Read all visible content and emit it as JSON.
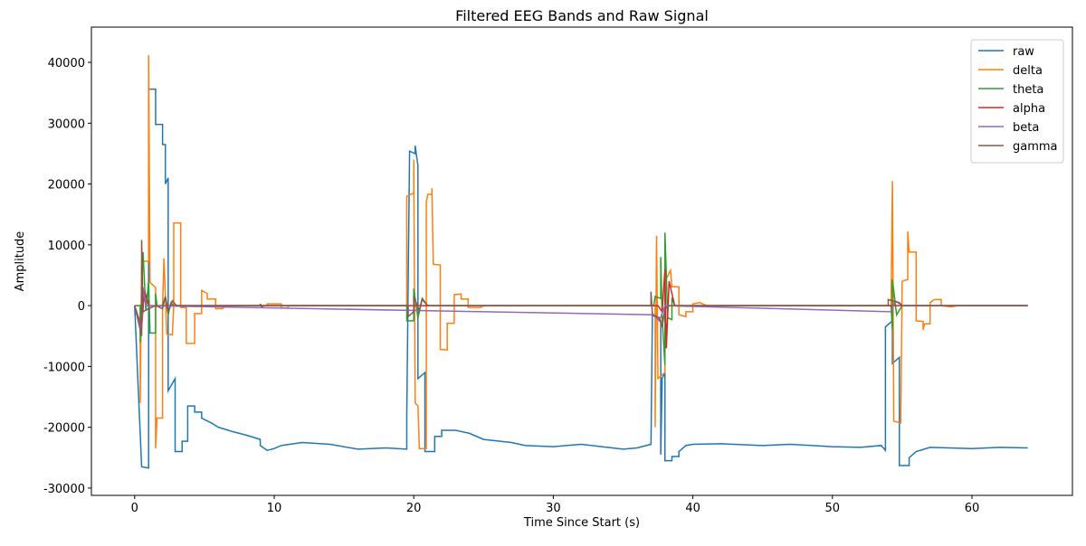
{
  "chart_data": {
    "type": "line",
    "title": "Filtered EEG Bands and Raw Signal",
    "x_label": "Time Since Start (s)",
    "y_label": "Amplitude",
    "xlim": [
      -3.1,
      67.2
    ],
    "ylim": [
      -31200,
      45800
    ],
    "xticks": [
      0,
      10,
      20,
      30,
      40,
      50,
      60
    ],
    "yticks": [
      -30000,
      -20000,
      -10000,
      0,
      10000,
      20000,
      30000,
      40000
    ],
    "legend": "upper right",
    "series": [
      {
        "name": "raw",
        "color": "#1f77b4",
        "x": [
          0,
          0.5,
          1.0,
          1.0,
          1.5,
          1.5,
          2.0,
          2.0,
          2.2,
          2.2,
          2.4,
          2.4,
          2.9,
          2.9,
          3.4,
          3.4,
          3.8,
          3.8,
          4.3,
          4.3,
          4.8,
          4.8,
          5.5,
          6,
          7,
          8,
          9,
          9,
          9.5,
          10,
          10.5,
          12,
          14,
          16,
          18,
          19.5,
          19.5,
          19.7,
          20.1,
          20.1,
          20.3,
          20.3,
          20.8,
          20.8,
          21.5,
          21.5,
          22,
          22,
          23,
          24,
          25,
          27,
          28,
          30,
          32,
          35,
          36,
          37,
          37.1,
          37.7,
          37.7,
          37.8,
          38,
          38,
          38.5,
          38.5,
          39,
          39,
          39.5,
          40,
          42,
          45,
          47,
          50,
          52,
          53.5,
          53.8,
          53.8,
          54.3,
          54.3,
          54.8,
          54.8,
          55.5,
          55.5,
          56,
          57,
          60,
          62,
          64
        ],
        "values": [
          0,
          -26500,
          -26700,
          35600,
          35600,
          29800,
          29800,
          26500,
          26500,
          20000,
          21000,
          -14000,
          -12000,
          -24000,
          -24000,
          -22300,
          -22300,
          -16500,
          -16500,
          -17500,
          -17500,
          -18500,
          -19300,
          -20000,
          -20700,
          -21300,
          -22000,
          -23000,
          -23800,
          -23500,
          -23000,
          -22500,
          -22800,
          -23600,
          -23400,
          -23600,
          -18000,
          25400,
          25000,
          26300,
          23000,
          -12000,
          -11000,
          -24000,
          -24000,
          -21500,
          -21500,
          -20500,
          -20500,
          -21000,
          -22000,
          -22500,
          -23000,
          -23200,
          -22800,
          -23600,
          -23400,
          -22800,
          -1500,
          -2500,
          -24500,
          -12000,
          -11000,
          -25500,
          -25500,
          -24800,
          -24800,
          -24000,
          -23000,
          -22800,
          -22700,
          -23000,
          -22800,
          -23200,
          -23300,
          -23000,
          -23800,
          -3500,
          -2500,
          -9500,
          -8500,
          -26300,
          -26300,
          -25000,
          -24000,
          -23300,
          -23500,
          -23300,
          -23400
        ]
      },
      {
        "name": "delta",
        "color": "#ff7f0e",
        "x": [
          0,
          0.4,
          0.4,
          0.5,
          1.0,
          1.0,
          1.1,
          1.5,
          1.5,
          1.6,
          2,
          2,
          2.1,
          2.3,
          2.7,
          2.8,
          2.8,
          3.3,
          3.3,
          3.7,
          3.7,
          4.3,
          4.3,
          4.8,
          4.8,
          5.2,
          5.2,
          5.8,
          5.8,
          6.3,
          6.5,
          9.5,
          9.5,
          10.5,
          10.5,
          11,
          11,
          19.5,
          19.5,
          20,
          20,
          20.1,
          20.3,
          20.4,
          20.9,
          20.9,
          21,
          21.3,
          21.3,
          21.4,
          21.9,
          21.9,
          22.4,
          22.4,
          22.9,
          22.9,
          23.4,
          23.4,
          23.9,
          23.9,
          24.8,
          25,
          37.3,
          37.3,
          37.4,
          37.5,
          38,
          38,
          38.4,
          38.5,
          39,
          39,
          39.5,
          39.5,
          40,
          40,
          40.5,
          41,
          54.2,
          54.3,
          54.4,
          54.9,
          55,
          55.4,
          55.4,
          55.5,
          56,
          56,
          56.5,
          56.5,
          56.6,
          57,
          57,
          57.3,
          57.8,
          57.8,
          58.5,
          59,
          64
        ],
        "values": [
          0,
          0,
          -16000,
          7300,
          7300,
          41200,
          3800,
          3000,
          -23500,
          -18500,
          -18500,
          0,
          7800,
          -4700,
          -4800,
          0,
          13600,
          13600,
          -300,
          -300,
          -6200,
          -6200,
          -1300,
          -1300,
          2500,
          2000,
          1100,
          1100,
          -500,
          -500,
          0,
          0,
          300,
          300,
          -400,
          -400,
          0,
          0,
          18000,
          18500,
          24000,
          -16000,
          -16500,
          -23500,
          -23500,
          17000,
          18300,
          18300,
          19300,
          6800,
          6700,
          -7200,
          -7300,
          -2900,
          -2900,
          1800,
          1900,
          1100,
          1100,
          -300,
          -300,
          0,
          0,
          -20000,
          11500,
          -12000,
          -11000,
          4000,
          5800,
          3100,
          3100,
          -1500,
          -1800,
          -1000,
          -1000,
          300,
          500,
          0,
          0,
          20500,
          -19000,
          -19300,
          4000,
          4300,
          12200,
          8800,
          8800,
          -2500,
          -2600,
          -4000,
          -3000,
          -3000,
          500,
          1000,
          1000,
          0,
          -200,
          0,
          0
        ]
      },
      {
        "name": "theta",
        "color": "#2ca02c",
        "x": [
          0,
          0.4,
          0.4,
          0.6,
          0.8,
          1.0,
          1.1,
          1.5,
          1.5,
          1.6,
          2,
          2.2,
          2.4,
          2.6,
          2.8,
          19.5,
          19.5,
          20,
          20,
          20.3,
          20.6,
          21,
          37.2,
          37.3,
          37.7,
          37.7,
          37.8,
          38,
          38,
          38.2,
          38.5,
          38.5,
          38.7,
          54.2,
          54.3,
          54.3,
          54.6,
          55,
          64
        ],
        "values": [
          0,
          0,
          -6000,
          8800,
          -800,
          4000,
          -4500,
          -4500,
          2000,
          0,
          0,
          1500,
          -1500,
          500,
          0,
          0,
          -2500,
          -2500,
          2800,
          -2000,
          1000,
          0,
          0,
          1500,
          1200,
          8000,
          -2000,
          -9800,
          12000,
          -2000,
          -2300,
          1300,
          0,
          0,
          -4000,
          4300,
          -1500,
          0,
          0
        ]
      },
      {
        "name": "alpha",
        "color": "#d62728",
        "x": [
          0,
          0.5,
          0.7,
          1,
          37.5,
          37.8,
          38,
          38.1,
          38.3,
          38.7,
          64
        ],
        "values": [
          0,
          -3500,
          2500,
          0,
          0,
          -1000,
          6000,
          -7000,
          4000,
          0,
          0
        ]
      },
      {
        "name": "beta",
        "color": "#9467bd",
        "x": [
          0,
          0.5,
          0.6,
          0.8,
          37.2,
          37.6,
          38,
          54.2,
          54.5,
          55,
          64
        ],
        "values": [
          0,
          -4000,
          3000,
          0,
          -1500,
          -2500,
          0,
          -1000,
          800,
          0,
          0
        ]
      },
      {
        "name": "gamma",
        "color": "#8c564b",
        "x": [
          0,
          0.5,
          0.5,
          0.6,
          1,
          1.5,
          2,
          2.2,
          2.4,
          2.7,
          3,
          9,
          9,
          9.1,
          9.3,
          19.6,
          19.6,
          20,
          20,
          20.4,
          20.6,
          21,
          37,
          37,
          37.1,
          37.6,
          37.8,
          38,
          38.3,
          54,
          54,
          54.3,
          54.8,
          55,
          64
        ],
        "values": [
          0,
          -5000,
          10800,
          -1000,
          -500,
          0,
          -500,
          1500,
          -1000,
          800,
          0,
          0,
          300,
          -200,
          0,
          0,
          -1800,
          -1000,
          1500,
          -800,
          1200,
          0,
          0,
          2300,
          -1500,
          -2000,
          -3500,
          -500,
          0,
          0,
          1000,
          800,
          500,
          0,
          0
        ]
      }
    ]
  }
}
